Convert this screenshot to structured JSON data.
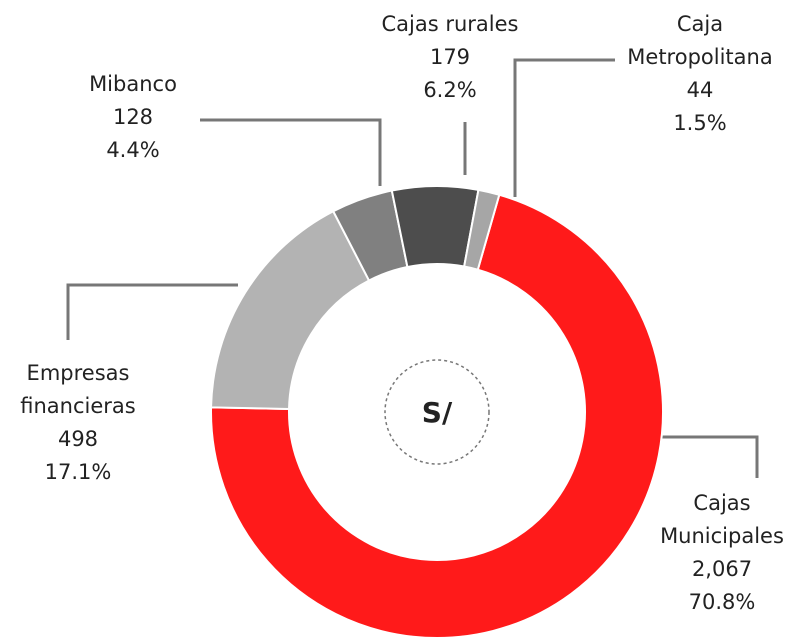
{
  "chart_data": {
    "type": "donut",
    "categories": [
      "Cajas\nMunicipales",
      "Empresas\nfinancieras",
      "Mibanco",
      "Cajas rurales",
      "Caja\nMetropolitana"
    ],
    "values": [
      2067,
      498,
      128,
      179,
      44
    ],
    "value_labels": [
      "2,067",
      "498",
      "128",
      "179",
      "44"
    ],
    "percentages": [
      70.8,
      17.1,
      4.4,
      6.2,
      1.5
    ],
    "percentage_labels": [
      "70.8%",
      "17.1%",
      "4.4%",
      "6.2%",
      "1.5%"
    ],
    "colors": [
      "#ff1a1a",
      "#b3b3b3",
      "#808080",
      "#4d4d4d",
      "#a6a6a6"
    ],
    "center_label": "S/"
  }
}
